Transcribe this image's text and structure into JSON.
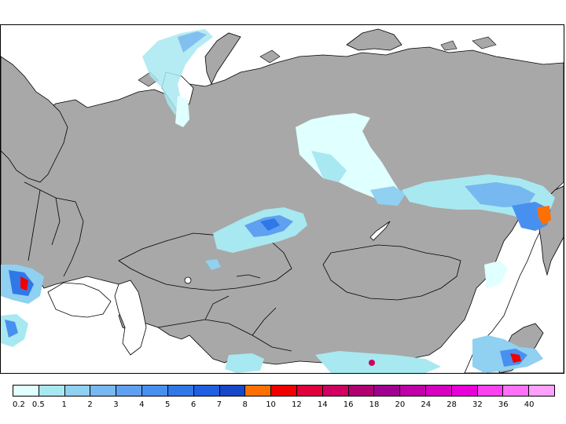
{
  "colors": {
    "land": "#a8a8a8",
    "water": "#ffffff",
    "coast": "#000000"
  },
  "legend": {
    "labels": [
      "0.2",
      "0.5",
      "1",
      "2",
      "3",
      "4",
      "5",
      "6",
      "7",
      "8",
      "10",
      "12",
      "14",
      "16",
      "18",
      "20",
      "24",
      "28",
      "32",
      "36",
      "40"
    ],
    "colors": [
      "#e0ffff",
      "#a8e8f0",
      "#90d0f0",
      "#78b8f0",
      "#60a0f0",
      "#4890f0",
      "#3078e8",
      "#2060e0",
      "#1848c8",
      "#ff7000",
      "#f00000",
      "#e0003c",
      "#d00060",
      "#b00070",
      "#a00090",
      "#c000a8",
      "#d800c0",
      "#e800d8",
      "#ff40f0",
      "#ff70f8",
      "#ffa0ff"
    ]
  }
}
